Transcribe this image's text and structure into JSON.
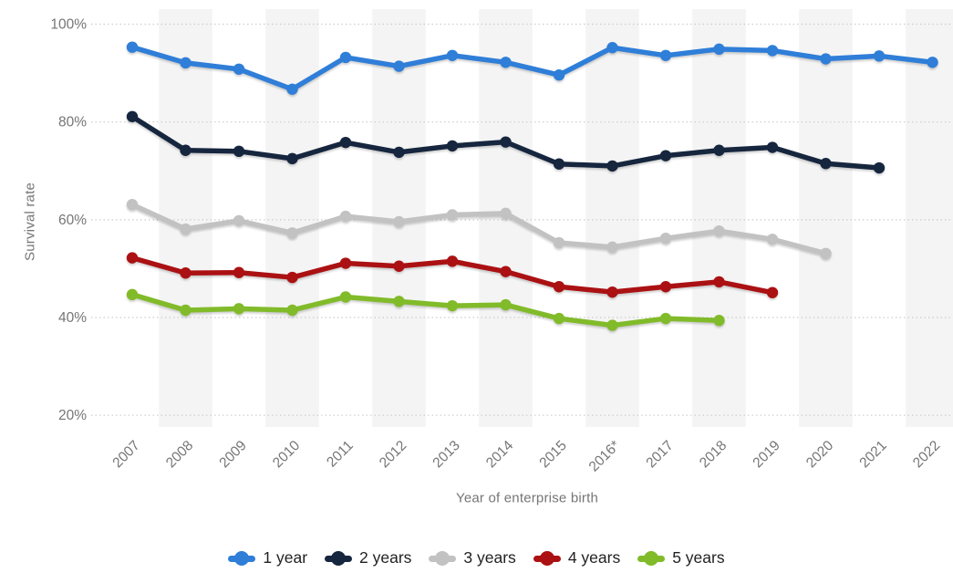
{
  "chart_data": {
    "type": "line",
    "title": "",
    "xlabel": "Year of enterprise birth",
    "ylabel": "Survival rate",
    "categories": [
      "2007",
      "2008",
      "2009",
      "2010",
      "2011",
      "2012",
      "2013",
      "2014",
      "2015",
      "2016*",
      "2017",
      "2018",
      "2019",
      "2020",
      "2021",
      "2022"
    ],
    "y_ticks": [
      {
        "label": "100%",
        "value": 100
      },
      {
        "label": "80%",
        "value": 80
      },
      {
        "label": "60%",
        "value": 60
      },
      {
        "label": "40%",
        "value": 40
      },
      {
        "label": "20%",
        "value": 20
      }
    ],
    "ylim": [
      20,
      100
    ],
    "grid": "horizontal-dotted",
    "legend_position": "bottom",
    "series": [
      {
        "name": "1 year",
        "color": "#2f7ed8",
        "values": [
          95.3,
          92.1,
          90.8,
          86.7,
          93.2,
          91.4,
          93.6,
          92.2,
          89.6,
          95.2,
          93.6,
          94.9,
          94.6,
          92.9,
          93.5,
          92.2
        ]
      },
      {
        "name": "2 years",
        "color": "#16263e",
        "values": [
          81.1,
          74.2,
          74.0,
          72.5,
          75.8,
          73.8,
          75.1,
          75.9,
          71.4,
          71.0,
          73.1,
          74.2,
          74.8,
          71.5,
          70.6
        ]
      },
      {
        "name": "3 years",
        "color": "#c2c2c2",
        "values": [
          63.1,
          58.1,
          59.8,
          57.3,
          60.7,
          59.6,
          61.0,
          61.3,
          55.3,
          54.4,
          56.2,
          57.7,
          56.0,
          53.1
        ]
      },
      {
        "name": "4 years",
        "color": "#ab1113",
        "values": [
          52.2,
          49.1,
          49.2,
          48.2,
          51.1,
          50.5,
          51.5,
          49.4,
          46.3,
          45.2,
          46.3,
          47.3,
          45.1
        ]
      },
      {
        "name": "5 years",
        "color": "#81bb2a",
        "values": [
          44.7,
          41.5,
          41.8,
          41.5,
          44.2,
          43.3,
          42.4,
          42.6,
          39.8,
          38.4,
          39.8,
          39.4
        ]
      }
    ],
    "colors": {
      "background": "#ffffff",
      "plot_band": "#f4f4f4",
      "gridline": "#cccccc",
      "tick_label": "#757575",
      "axis_title": "#757575",
      "legend_text": "#222222"
    }
  }
}
